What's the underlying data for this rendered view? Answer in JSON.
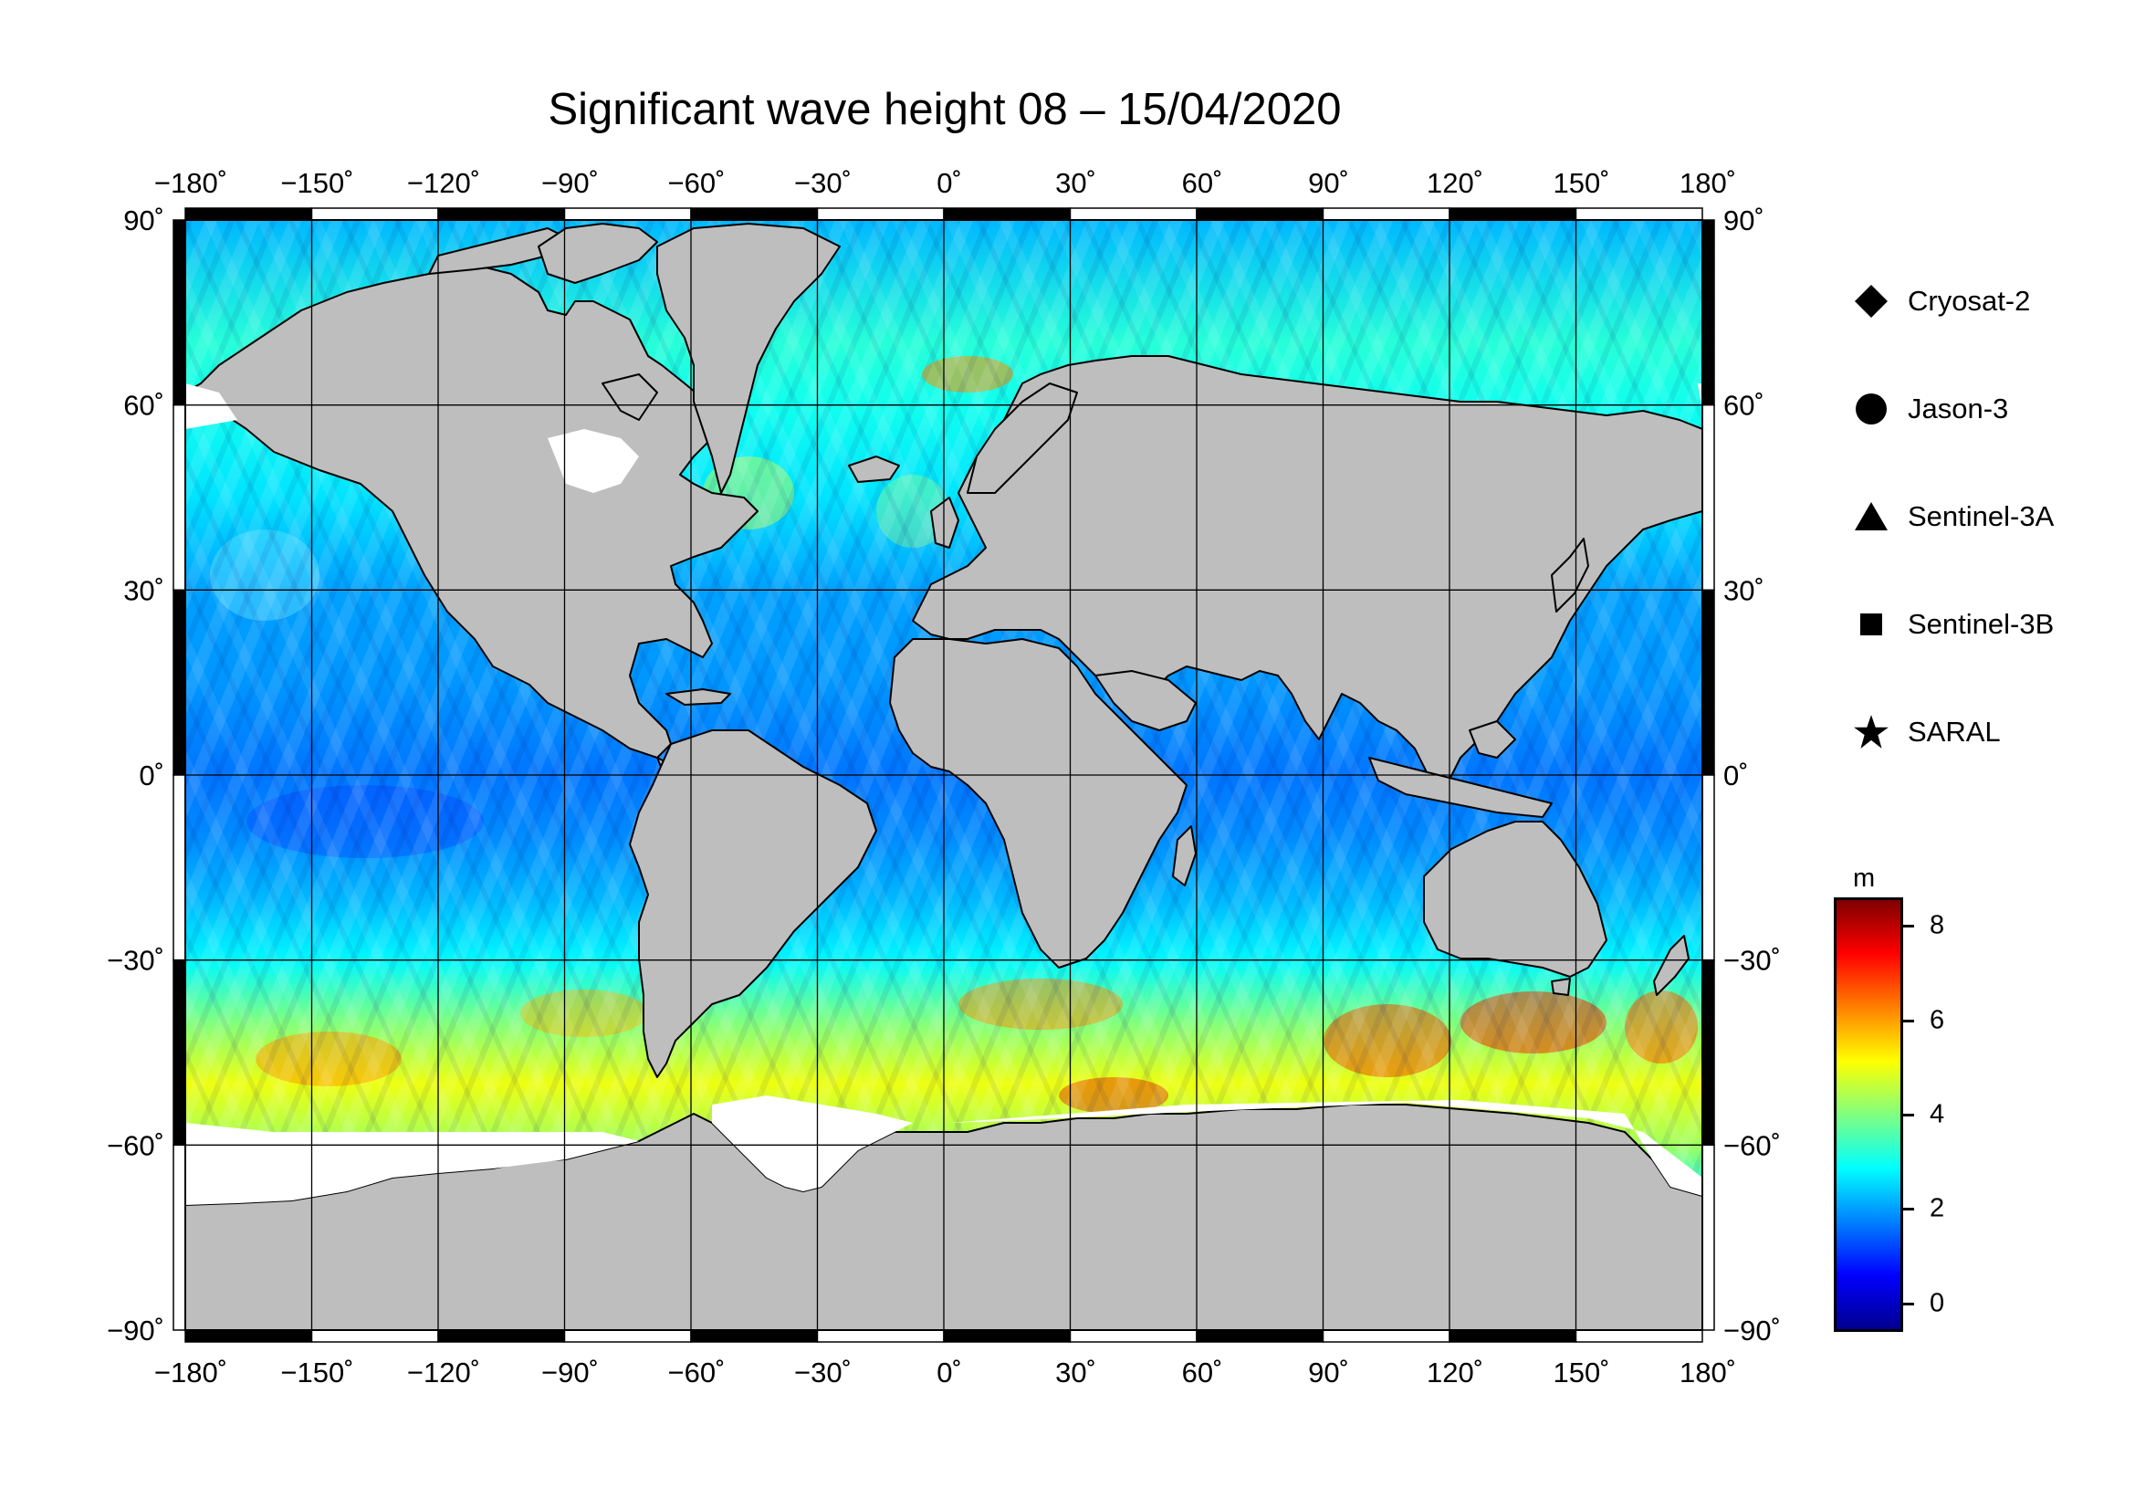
{
  "title": "Significant wave height 08 – 15/04/2020",
  "map": {
    "lon_labels": [
      "−180˚",
      "−150˚",
      "−120˚",
      "−90˚",
      "−60˚",
      "−30˚",
      "0˚",
      "30˚",
      "60˚",
      "90˚",
      "120˚",
      "150˚",
      "180˚"
    ],
    "lat_labels": [
      "90˚",
      "60˚",
      "30˚",
      "0˚",
      "−30˚",
      "−60˚",
      "−90˚"
    ],
    "lon_range": [
      -180,
      180
    ],
    "lat_range": [
      -90,
      90
    ],
    "grid_step_lon": 30,
    "grid_step_lat": 30,
    "projection": "cylindrical",
    "land_color": "#bebebe",
    "ice_color": "#ffffff"
  },
  "legend": {
    "items": [
      {
        "label": "Cryosat-2",
        "symbol": "diamond"
      },
      {
        "label": "Jason-3",
        "symbol": "circle"
      },
      {
        "label": "Sentinel-3A",
        "symbol": "triangle"
      },
      {
        "label": "Sentinel-3B",
        "symbol": "square"
      },
      {
        "label": "SARAL",
        "symbol": "star"
      }
    ]
  },
  "colorbar": {
    "unit": "m",
    "min": -0.6,
    "max": 8.6,
    "ticks": [
      "0",
      "2",
      "4",
      "6",
      "8"
    ],
    "tick_values": [
      0,
      2,
      4,
      6,
      8
    ],
    "colors": [
      "#00008f",
      "#0000ff",
      "#0080ff",
      "#00ffff",
      "#80ff80",
      "#ffff00",
      "#ff8000",
      "#ff0000",
      "#800000"
    ]
  }
}
